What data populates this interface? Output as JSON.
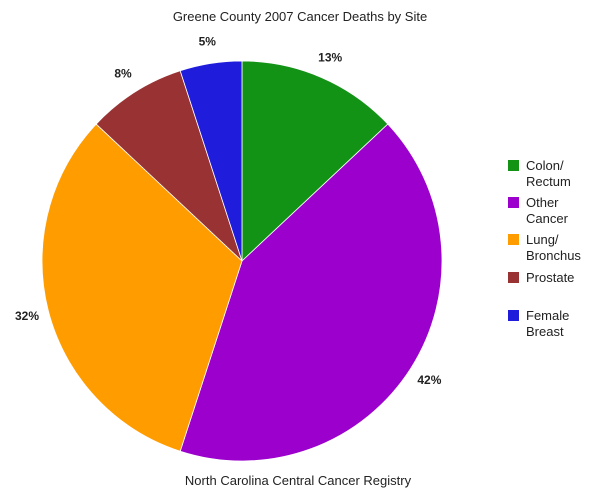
{
  "chart_data": {
    "type": "pie",
    "title": "Greene County 2007 Cancer Deaths by Site",
    "caption": "North Carolina Central Cancer Registry",
    "slices": [
      {
        "name": "Colon/ Rectum",
        "legend_lines": [
          "Colon/",
          "Rectum"
        ],
        "value": 13,
        "label": "13%",
        "color": "#129316"
      },
      {
        "name": "Other Cancer",
        "legend_lines": [
          "Other",
          "Cancer"
        ],
        "value": 42,
        "label": "42%",
        "color": "#9b00cc"
      },
      {
        "name": "Lung/ Bronchus",
        "legend_lines": [
          "Lung/",
          "Bronchus"
        ],
        "value": 32,
        "label": "32%",
        "color": "#ff9c00"
      },
      {
        "name": "Prostate",
        "legend_lines": [
          "Prostate"
        ],
        "value": 8,
        "label": "8%",
        "color": "#993333"
      },
      {
        "name": "Female Breast",
        "legend_lines": [
          "Female",
          "Breast"
        ],
        "value": 5,
        "label": "5%",
        "color": "#1f1ddb"
      }
    ],
    "start_angle": "12 o'clock",
    "direction": "clockwise",
    "legend_position": "right"
  }
}
